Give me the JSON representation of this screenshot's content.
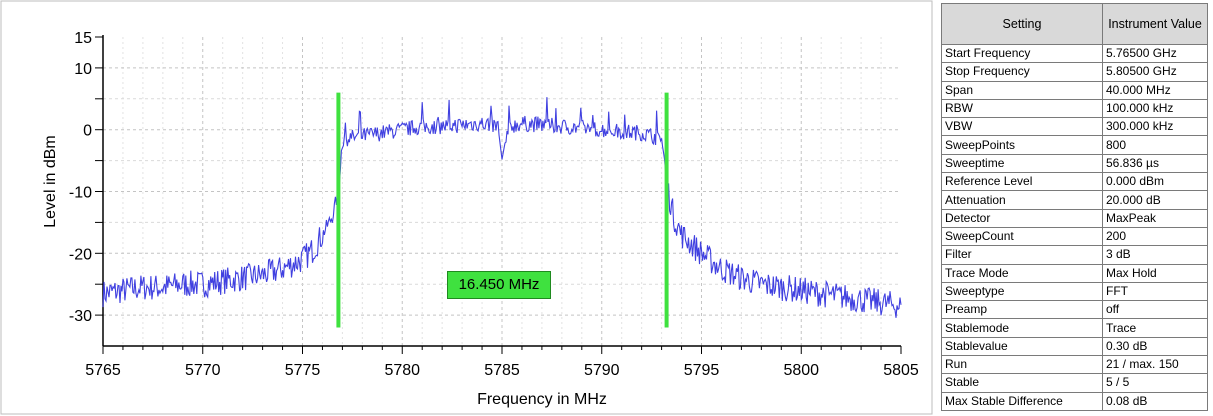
{
  "chart_data": {
    "type": "line",
    "title": "",
    "xlabel": "Frequency in MHz",
    "ylabel": "Level in dBm",
    "xlim": [
      5765,
      5805
    ],
    "ylim": [
      -35,
      15
    ],
    "x_ticks": [
      "5765",
      "5770",
      "5775",
      "5780",
      "5785",
      "5790",
      "5795",
      "5800",
      "5805"
    ],
    "y_ticks": [
      "15",
      "10",
      "0",
      "-10",
      "-20",
      "-30"
    ],
    "grid": true,
    "line_color": "#4040e0",
    "marker_color": "#3fe13f",
    "series": [
      {
        "x": [
          5765,
          5766,
          5767,
          5768,
          5769,
          5770,
          5771,
          5772,
          5773,
          5774,
          5775,
          5775.5,
          5776,
          5776.5,
          5776.8,
          5777,
          5778,
          5779,
          5780,
          5781,
          5782,
          5783,
          5784,
          5784.8,
          5785,
          5785.3,
          5786,
          5787,
          5788,
          5789,
          5790,
          5791,
          5792,
          5793,
          5793.3,
          5793.6,
          5794,
          5795,
          5796,
          5797,
          5798,
          5799,
          5800,
          5801,
          5802,
          5803,
          5804,
          5805
        ],
        "y": [
          -26.5,
          -26,
          -25.5,
          -25.5,
          -25,
          -25,
          -24.5,
          -24,
          -23.5,
          -22.5,
          -21,
          -19.5,
          -17,
          -14,
          -10,
          -1.5,
          -1,
          -0.5,
          0,
          0.5,
          0.5,
          0.8,
          1,
          0.5,
          -4.8,
          0.5,
          1,
          0.8,
          0.5,
          0.3,
          0,
          -0.3,
          -0.5,
          -1.5,
          -9.5,
          -14,
          -17,
          -20,
          -22.5,
          -24,
          -25,
          -25.5,
          -26,
          -26.5,
          -27,
          -27.5,
          -28,
          -28.5
        ]
      }
    ],
    "markers": [
      {
        "x": 5776.8,
        "y_from": -32,
        "y_to": 6
      },
      {
        "x": 5793.25,
        "y_from": -32,
        "y_to": 6
      }
    ],
    "annotations": [
      "16.450 MHz"
    ]
  },
  "marker_label": "16.450 MHz",
  "table": {
    "headers": [
      "Setting",
      "Instrument Value"
    ],
    "rows": [
      [
        "Start Frequency",
        "5.76500 GHz"
      ],
      [
        "Stop Frequency",
        "5.80500 GHz"
      ],
      [
        "Span",
        "40.000 MHz"
      ],
      [
        "RBW",
        "100.000 kHz"
      ],
      [
        "VBW",
        "300.000 kHz"
      ],
      [
        "SweepPoints",
        "800"
      ],
      [
        "Sweeptime",
        "56.836 µs"
      ],
      [
        "Reference Level",
        "0.000 dBm"
      ],
      [
        "Attenuation",
        "20.000 dB"
      ],
      [
        "Detector",
        "MaxPeak"
      ],
      [
        "SweepCount",
        "200"
      ],
      [
        "Filter",
        "3 dB"
      ],
      [
        "Trace Mode",
        "Max Hold"
      ],
      [
        "Sweeptype",
        "FFT"
      ],
      [
        "Preamp",
        "off"
      ],
      [
        "Stablemode",
        "Trace"
      ],
      [
        "Stablevalue",
        "0.30 dB"
      ],
      [
        "Run",
        "21 / max. 150"
      ],
      [
        "Stable",
        "5 / 5"
      ],
      [
        "Max Stable Difference",
        "0.08 dB"
      ]
    ]
  }
}
